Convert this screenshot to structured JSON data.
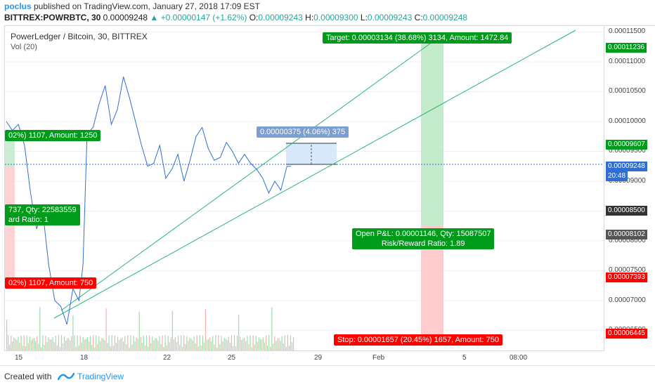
{
  "header": {
    "user": "poclus",
    "published": " published on TradingView.com, January 27, 2018 17:09 EST",
    "symbol": "BITTREX:POWRBTC, 30",
    "price": " 0.00009248 ",
    "change": "▲ +0.00000147 (+1.62%) ",
    "o_label": "O:",
    "o_val": "0.00009243",
    "h_label": " H:",
    "h_val": "0.00009300",
    "l_label": " L:",
    "l_val": "0.00009243",
    "c_label": " C:",
    "c_val": "0.00009248"
  },
  "chart_title": "PowerLedger / Bitcoin, 30, BITTREX",
  "volume_label": "Vol (20)",
  "annotations": {
    "target": "Target: 0.00003134 (38.68%) 3134, Amount: 1472.84",
    "range": "0.00000375 (4.06%) 375",
    "left_green_1": "02%) 1107, Amount: 1250",
    "left_green_2_l1": "737, Qty: 22583559",
    "left_green_2_l2": "ard Ratio: 1",
    "left_red": "02%) 1107, Amount: 750",
    "open_pl_l1": "Open P&L: 0.00001146, Qty: 15087507",
    "open_pl_l2": "Risk/Reward Ratio: 1.89",
    "stop": "Stop: 0.00001657 (20.45%) 1657, Amount: 750"
  },
  "footer": {
    "created": "Created with",
    "brand": "TradingView"
  },
  "colors": {
    "price_line": "#2e6fd6",
    "trend_line": "#2bb673",
    "profit_zone": "#b7e6c0",
    "loss_zone": "#ffc0c0",
    "current_price": "#2e6fd6"
  },
  "chart_data": {
    "type": "line",
    "title": "PowerLedger / Bitcoin, 30, BITTREX",
    "x_ticks": [
      "15",
      "18",
      "22",
      "25",
      "29",
      "Feb",
      "5",
      "08:00"
    ],
    "y_ticks": [
      "0.00011500",
      "0.00011000",
      "0.00010500",
      "0.00010000",
      "0.00009500",
      "0.00009000",
      "0.00008500",
      "0.00008000",
      "0.00007500",
      "0.00007000",
      "0.00006500"
    ],
    "y_flags": [
      {
        "value": "0.00011236",
        "color": "#009b1a"
      },
      {
        "value": "0.00009607",
        "color": "#009b1a"
      },
      {
        "value": "0.00009248",
        "color": "#2e6fd6"
      },
      {
        "value": "20:48",
        "color": "#2e6fd6"
      },
      {
        "value": "0.00008500",
        "color": "#333333"
      },
      {
        "value": "0.00008102",
        "color": "#555555"
      },
      {
        "value": "0.00007393",
        "color": "#ff0000"
      },
      {
        "value": "0.00006445",
        "color": "#ff0000"
      }
    ],
    "ylim": [
      6.14e-05,
      0.000116
    ],
    "series": [
      {
        "values_note": "approximate path over the visible data range (x in day index from Jan 14)",
        "x": [
          14.0,
          14.3,
          14.6,
          14.9,
          15.2,
          15.5,
          15.8,
          16.1,
          16.4,
          16.7,
          17.0,
          17.3,
          17.6,
          17.8,
          18.0,
          18.3,
          18.6,
          18.9,
          19.2,
          19.5,
          19.8,
          20.1,
          20.4,
          20.7,
          21.0,
          21.3,
          21.6,
          21.9,
          22.2,
          22.5,
          22.8,
          23.1,
          23.4,
          23.7,
          24.0,
          24.3,
          24.6,
          24.9,
          25.2,
          25.5,
          25.8,
          26.1,
          26.4,
          26.7,
          27.0,
          27.3,
          27.6,
          27.9,
          28.1
        ],
        "y": [
          0.0001,
          9.85e-05,
          9.95e-05,
          9.6e-05,
          8.8e-05,
          8.2e-05,
          8.5e-05,
          7.6e-05,
          7e-05,
          6.9e-05,
          6.6e-05,
          7.2e-05,
          7e-05,
          7.6e-05,
          9.8e-05,
          9.9e-05,
          0.000103,
          0.000106,
          9.95e-05,
          0.000102,
          0.0001075,
          0.000104,
          0.0001,
          9.6e-05,
          9.25e-05,
          9.3e-05,
          9.6e-05,
          9.05e-05,
          9.2e-05,
          9.45e-05,
          9e-05,
          9.35e-05,
          9.75e-05,
          9.9e-05,
          9.55e-05,
          9.35e-05,
          9.4e-05,
          9.65e-05,
          9.5e-05,
          9.3e-05,
          9.45e-05,
          9.3e-05,
          9.2e-05,
          9.05e-05,
          8.8e-05,
          9e-05,
          8.85e-05,
          9.25e-05,
          9.25e-05
        ]
      }
    ]
  }
}
